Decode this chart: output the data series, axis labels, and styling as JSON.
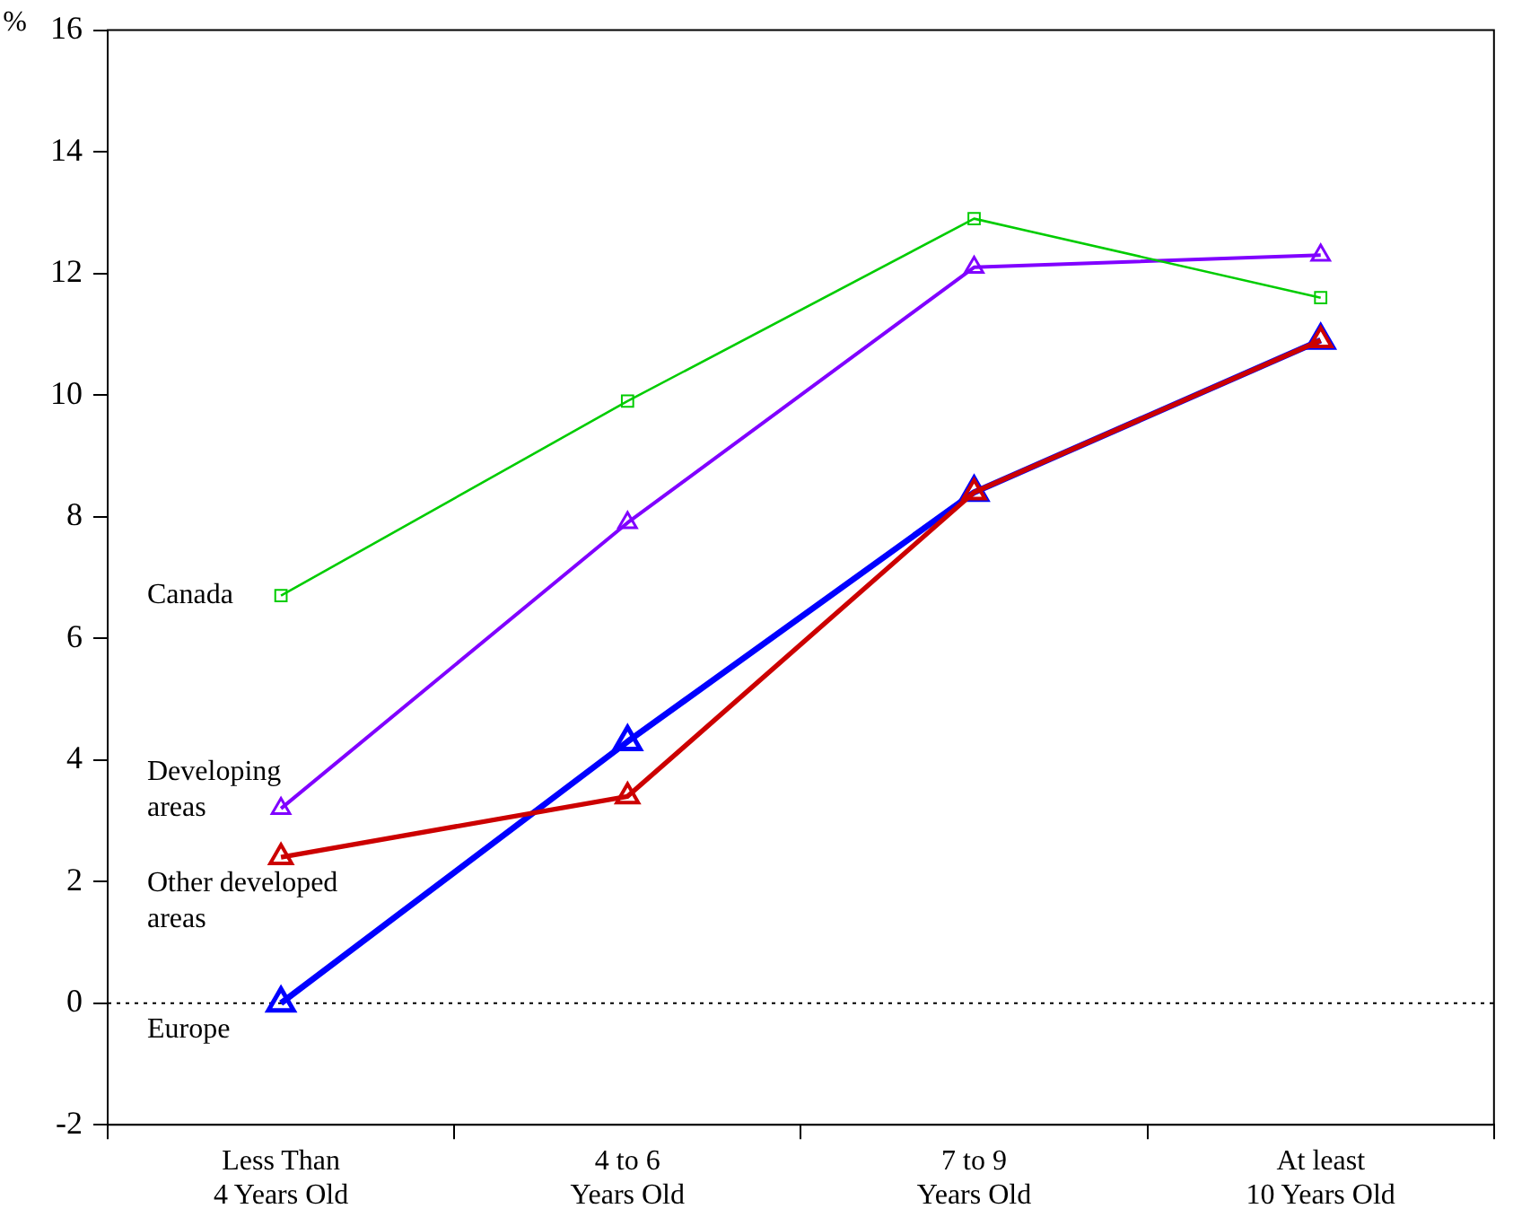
{
  "chart_data": {
    "type": "line",
    "ylabel": "%",
    "categories": [
      "Less Than\n4 Years Old",
      "4 to 6\nYears Old",
      "7 to 9\nYears Old",
      "At least\n10 Years Old"
    ],
    "series": [
      {
        "name": "Canada",
        "color": "#00cc00",
        "marker": "square",
        "values": [
          6.7,
          9.9,
          12.9,
          11.6
        ]
      },
      {
        "name": "Developing\nareas",
        "color": "#8000ff",
        "marker": "triangle",
        "values": [
          3.2,
          7.9,
          12.1,
          12.3
        ]
      },
      {
        "name": "Other developed\nareas",
        "color": "#cc0000",
        "marker": "triangle",
        "values": [
          2.4,
          3.4,
          8.4,
          10.9
        ]
      },
      {
        "name": "Europe",
        "color": "#0000ff",
        "marker": "triangle",
        "values": [
          0,
          4.3,
          8.4,
          10.9
        ]
      }
    ],
    "ylim": [
      -2,
      16
    ],
    "yticks": [
      -2,
      0,
      2,
      4,
      6,
      8,
      10,
      12,
      14,
      16
    ],
    "ref_lines": [
      {
        "axis": "y",
        "value": 0,
        "line_style": "dotted",
        "color": "#000000"
      }
    ],
    "grid": false,
    "legend": false,
    "line_style": "solid"
  }
}
